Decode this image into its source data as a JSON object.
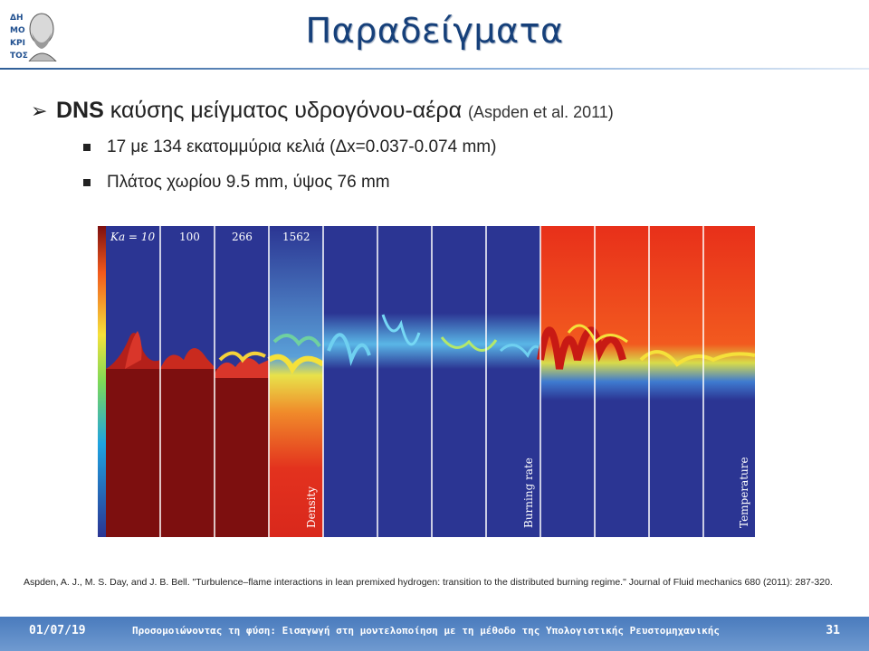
{
  "slide": {
    "title": "Παραδείγματα",
    "logo_icon": "democritus-bust-logo"
  },
  "bullets": {
    "main_bold": "DNS",
    "main_text": " καύσης μείγματος υδρογόνου-αέρα ",
    "main_cite": "(Aspden et al. 2011)",
    "sub": [
      "17 με 134 εκατομμύρια κελιά (Δx=0.037-0.074 mm)",
      "Πλάτος χωρίου 9.5 mm, ύψος 76 mm"
    ]
  },
  "figure": {
    "panel_labels": [
      "Ka = 10",
      "100",
      "266",
      "1562"
    ],
    "field_labels": [
      "Density",
      "Burning rate",
      "Temperature"
    ],
    "colors": {
      "background_blue": "#2b3593",
      "dense_red": "#7d0f0f",
      "flame_red": "#e8301a"
    }
  },
  "reference": "Aspden, A. J., M. S. Day, and J. B. Bell. \"Turbulence–flame interactions in lean premixed hydrogen: transition to the distributed burning regime.\" Journal of Fluid mechanics 680 (2011): 287-320.",
  "footer": {
    "date": "01/07/19",
    "text": "Προσομοιώνοντας τη φύση: Εισαγωγή στη μοντελοποίηση με τη μέθοδο της Υπολογιστικής Ρευστομηχανικής",
    "page": "31"
  }
}
